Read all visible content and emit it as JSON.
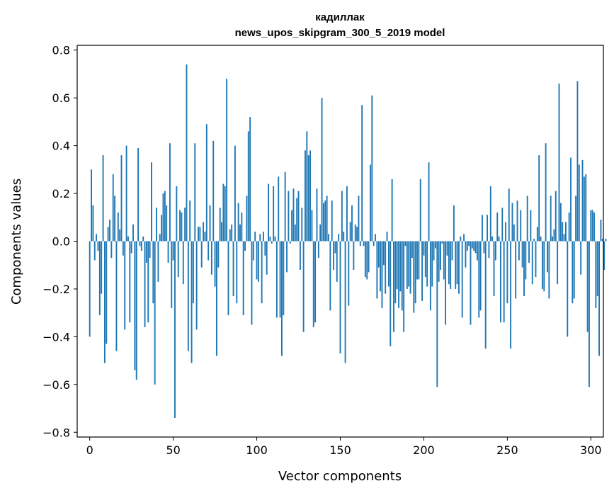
{
  "chart_data": {
    "type": "bar",
    "title": "кадиллак",
    "subtitle": "news_upos_skipgram_300_5_2019 model",
    "xlabel": "Vector components",
    "ylabel": "Components values",
    "xlim": [
      -7.5,
      307.5
    ],
    "ylim": [
      -0.82,
      0.82
    ],
    "xticks": [
      0,
      50,
      100,
      150,
      200,
      250,
      300
    ],
    "xtick_labels": [
      "0",
      "50",
      "100",
      "150",
      "200",
      "250",
      "300"
    ],
    "yticks": [
      -0.8,
      -0.6,
      -0.4,
      -0.2,
      0.0,
      0.2,
      0.4,
      0.6,
      0.8
    ],
    "ytick_labels": [
      "−0.8",
      "−0.6",
      "−0.4",
      "−0.2",
      "0.0",
      "0.2",
      "0.4",
      "0.6",
      "0.8"
    ],
    "bar_color": "#1f77b4",
    "values": [
      -0.4,
      0.3,
      0.15,
      -0.08,
      0.03,
      -0.04,
      -0.31,
      -0.22,
      0.36,
      -0.51,
      -0.43,
      0.06,
      0.09,
      -0.07,
      0.28,
      0.19,
      -0.46,
      0.12,
      0.05,
      0.36,
      -0.06,
      -0.37,
      0.4,
      0.02,
      -0.34,
      -0.05,
      0.07,
      -0.54,
      -0.58,
      0.39,
      -0.02,
      -0.04,
      0.02,
      -0.36,
      -0.09,
      -0.34,
      -0.07,
      0.33,
      -0.26,
      -0.6,
      0.14,
      -0.17,
      0.03,
      0.11,
      0.2,
      0.21,
      0.15,
      -0.09,
      0.41,
      -0.28,
      -0.08,
      -0.74,
      0.23,
      -0.15,
      0.13,
      0.12,
      -0.18,
      0.14,
      0.74,
      -0.46,
      0.17,
      -0.51,
      -0.26,
      0.41,
      -0.37,
      0.06,
      0.06,
      -0.11,
      0.08,
      0.04,
      0.49,
      -0.08,
      0.15,
      -0.14,
      0.42,
      -0.19,
      -0.48,
      -0.11,
      0.14,
      0.08,
      0.24,
      0.23,
      0.68,
      -0.31,
      0.05,
      0.07,
      -0.23,
      0.4,
      -0.26,
      0.16,
      0.07,
      0.12,
      -0.31,
      -0.04,
      0.19,
      0.46,
      0.52,
      -0.35,
      -0.08,
      0.04,
      -0.16,
      -0.17,
      0.03,
      -0.26,
      0.04,
      -0.06,
      -0.14,
      0.24,
      0.02,
      -0.01,
      0.23,
      0.02,
      -0.32,
      0.27,
      -0.32,
      -0.48,
      -0.31,
      0.29,
      -0.13,
      0.21,
      -0.01,
      0.13,
      0.22,
      0.07,
      0.18,
      0.21,
      -0.12,
      0.14,
      -0.38,
      0.38,
      0.46,
      0.36,
      0.38,
      0.13,
      -0.36,
      -0.34,
      0.22,
      -0.07,
      0.07,
      0.6,
      0.16,
      0.17,
      0.19,
      0.03,
      -0.29,
      0.17,
      -0.12,
      -0.05,
      -0.17,
      0.03,
      -0.47,
      0.21,
      0.04,
      -0.51,
      0.23,
      -0.27,
      0.08,
      0.15,
      -0.12,
      0.07,
      0.06,
      0.19,
      -0.02,
      0.57,
      -0.02,
      -0.15,
      -0.16,
      -0.13,
      0.32,
      0.61,
      -0.02,
      0.03,
      -0.24,
      -0.11,
      -0.21,
      -0.28,
      -0.1,
      -0.22,
      0.04,
      -0.19,
      -0.44,
      0.26,
      -0.38,
      -0.26,
      -0.2,
      -0.28,
      -0.21,
      -0.29,
      -0.38,
      -0.02,
      -0.2,
      -0.19,
      -0.22,
      -0.07,
      -0.3,
      -0.26,
      -0.16,
      -0.16,
      0.26,
      -0.25,
      -0.06,
      -0.15,
      -0.19,
      0.33,
      -0.29,
      -0.19,
      -0.08,
      -0.03,
      -0.61,
      -0.17,
      -0.12,
      -0.01,
      -0.16,
      -0.35,
      -0.06,
      -0.18,
      -0.2,
      -0.08,
      0.15,
      -0.2,
      -0.18,
      -0.22,
      0.02,
      -0.32,
      0.03,
      -0.11,
      -0.04,
      -0.02,
      -0.35,
      -0.03,
      -0.04,
      -0.05,
      -0.08,
      -0.32,
      -0.29,
      0.11,
      -0.05,
      -0.45,
      0.11,
      -0.07,
      0.23,
      0.02,
      -0.23,
      -0.08,
      0.12,
      0.02,
      -0.34,
      0.14,
      -0.34,
      0.08,
      -0.26,
      0.22,
      -0.45,
      0.16,
      0.07,
      -0.24,
      0.17,
      -0.08,
      0.13,
      -0.11,
      -0.23,
      -0.16,
      0.19,
      -0.09,
      0.13,
      -0.18,
      0.01,
      -0.15,
      0.06,
      0.36,
      0.02,
      -0.2,
      -0.21,
      0.41,
      -0.13,
      -0.24,
      0.19,
      0.02,
      0.05,
      0.21,
      -0.18,
      0.66,
      0.16,
      0.08,
      0.03,
      0.08,
      -0.4,
      0.12,
      0.35,
      -0.26,
      -0.24,
      0.19,
      0.67,
      0.32,
      -0.14,
      0.34,
      0.27,
      0.28,
      -0.38,
      -0.61,
      0.13,
      0.13,
      0.12,
      -0.28,
      -0.23,
      -0.48,
      0.09,
      0.01,
      -0.12,
      0.01
    ]
  }
}
